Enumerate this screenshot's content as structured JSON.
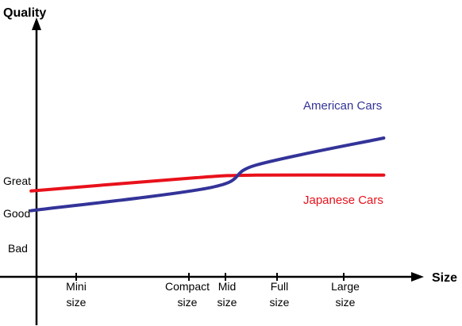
{
  "chart_data": {
    "type": "line",
    "title": "",
    "xlabel": "Size",
    "ylabel": "Quality",
    "grid": false,
    "legend": "inline labels",
    "x_categories": [
      {
        "line1": "Mini",
        "line2": "size"
      },
      {
        "line1": "Compact",
        "line2": "size"
      },
      {
        "line1": "Mid",
        "line2": "size"
      },
      {
        "line1": "Full",
        "line2": "size"
      },
      {
        "line1": "Large",
        "line2": "size"
      }
    ],
    "y_categories": [
      "Bad",
      "Good",
      "Great"
    ],
    "series": [
      {
        "name": "American Cars",
        "color": "#333399",
        "points": [
          [
            0.6,
            1.06
          ],
          [
            2.6,
            1.79
          ],
          [
            3.6,
            2.5
          ],
          [
            5.6,
            3.35
          ]
        ]
      },
      {
        "name": "Japanese Cars",
        "color": "#e8111b",
        "points": [
          [
            0.6,
            1.68
          ],
          [
            2.2,
            2.1
          ],
          [
            3.6,
            2.18
          ],
          [
            5.6,
            2.18
          ]
        ]
      }
    ]
  },
  "colors": {
    "axis": "#000000",
    "american": "#333399",
    "japanese": "#e8111b"
  }
}
